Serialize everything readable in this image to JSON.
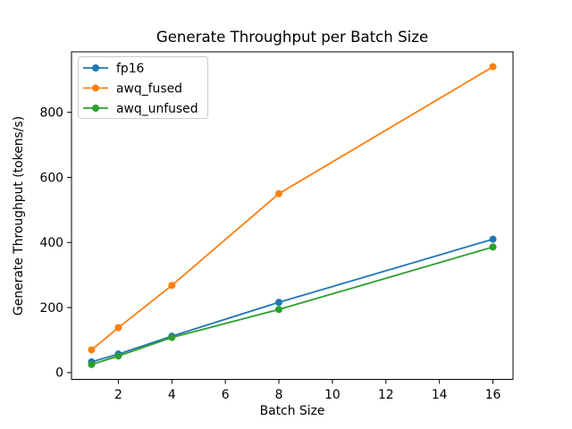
{
  "chart_data": {
    "type": "line",
    "title": "Generate Throughput per Batch Size",
    "xlabel": "Batch Size",
    "ylabel": "Generate Throughput (tokens/s)",
    "x": [
      1,
      2,
      4,
      8,
      16
    ],
    "series": [
      {
        "name": "fp16",
        "color": "#1f77b4",
        "values": [
          33,
          57,
          112,
          216,
          410
        ]
      },
      {
        "name": "awq_fused",
        "color": "#ff7f0e",
        "values": [
          70,
          138,
          268,
          550,
          940
        ]
      },
      {
        "name": "awq_unfused",
        "color": "#2ca02c",
        "values": [
          25,
          51,
          108,
          194,
          386
        ]
      }
    ],
    "xticks": [
      2,
      4,
      6,
      8,
      10,
      12,
      14,
      16
    ],
    "yticks": [
      0,
      200,
      400,
      600,
      800
    ],
    "xlim": [
      0.25,
      16.75
    ],
    "ylim": [
      -20.8,
      985.8
    ],
    "grid": false,
    "legend_position": "upper left",
    "marker": "o",
    "line_width": 1.8,
    "marker_radius": 4,
    "axis_color": "#000000",
    "legend_border_color": "#cccccc",
    "background_color": "#ffffff"
  }
}
